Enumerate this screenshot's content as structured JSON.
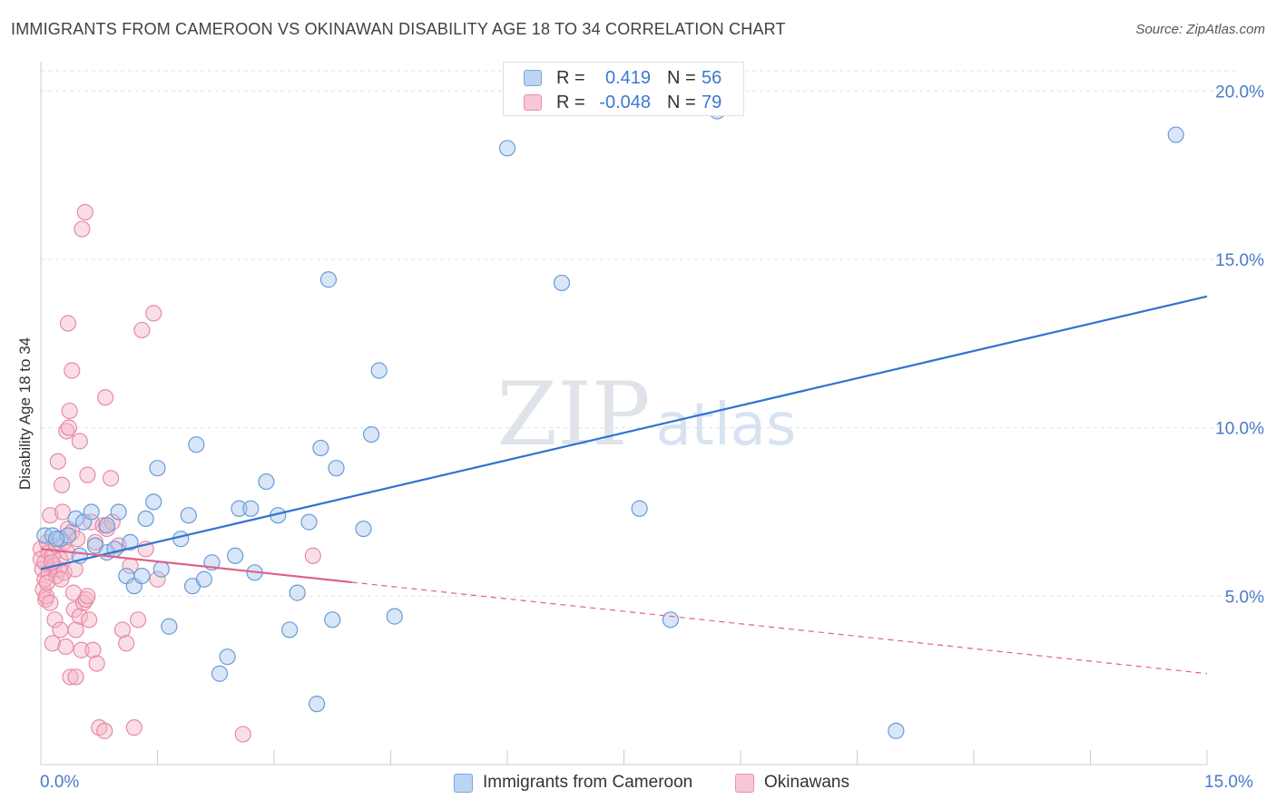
{
  "title": "IMMIGRANTS FROM CAMEROON VS OKINAWAN DISABILITY AGE 18 TO 34 CORRELATION CHART",
  "source": "Source: ZipAtlas.com",
  "watermark": {
    "zip": "ZIP",
    "atlas": "atlas"
  },
  "legend_top": {
    "r_label": "R =",
    "n_label": "N =",
    "series1": {
      "r": "0.419",
      "n": "56"
    },
    "series2": {
      "r": "-0.048",
      "n": "79"
    }
  },
  "x_tick_labels": {
    "left": "0.0%",
    "right": "15.0%"
  },
  "chart_data": {
    "type": "scatter",
    "title": "IMMIGRANTS FROM CAMEROON VS OKINAWAN DISABILITY AGE 18 TO 34 CORRELATION CHART",
    "xlabel": "",
    "ylabel": "Disability Age 18 to 34",
    "xlim": [
      0,
      15
    ],
    "ylim": [
      0,
      20.6
    ],
    "y_ticks": [
      5,
      10,
      15,
      20
    ],
    "y_tick_labels": [
      "5.0%",
      "10.0%",
      "15.0%",
      "20.0%"
    ],
    "x_tick_labels": [
      "0.0%",
      "15.0%"
    ],
    "grid": true,
    "colors": {
      "series1_fill": "#a9c7ee",
      "series1_stroke": "#6a9bd8",
      "series1_line": "#2f74d0",
      "series2_fill": "#f4b6c8",
      "series2_stroke": "#e88aa5",
      "series2_line": "#e0608c",
      "tick_label": "#4a7ac8",
      "grid": "#dcdfe6"
    },
    "series": [
      {
        "name": "Immigrants from Cameroon",
        "r": 0.419,
        "n": 56,
        "trend": {
          "x": [
            0.0,
            15.0
          ],
          "y": [
            5.8,
            13.9
          ],
          "dashed_from": null
        },
        "points": [
          [
            0.05,
            6.8
          ],
          [
            0.15,
            6.8
          ],
          [
            0.25,
            6.7
          ],
          [
            0.35,
            6.8
          ],
          [
            0.45,
            7.3
          ],
          [
            0.5,
            6.2
          ],
          [
            0.55,
            7.2
          ],
          [
            0.65,
            7.5
          ],
          [
            0.7,
            6.5
          ],
          [
            0.85,
            7.1
          ],
          [
            0.85,
            6.3
          ],
          [
            0.95,
            6.4
          ],
          [
            1.0,
            7.5
          ],
          [
            1.1,
            5.6
          ],
          [
            1.15,
            6.6
          ],
          [
            1.2,
            5.3
          ],
          [
            1.3,
            5.6
          ],
          [
            1.35,
            7.3
          ],
          [
            1.45,
            7.8
          ],
          [
            1.5,
            8.8
          ],
          [
            1.55,
            5.8
          ],
          [
            1.65,
            4.1
          ],
          [
            1.8,
            6.7
          ],
          [
            1.9,
            7.4
          ],
          [
            1.95,
            5.3
          ],
          [
            2.0,
            9.5
          ],
          [
            2.1,
            5.5
          ],
          [
            2.2,
            6.0
          ],
          [
            2.3,
            2.7
          ],
          [
            2.4,
            3.2
          ],
          [
            2.5,
            6.2
          ],
          [
            2.55,
            7.6
          ],
          [
            2.7,
            7.6
          ],
          [
            2.75,
            5.7
          ],
          [
            2.9,
            8.4
          ],
          [
            3.05,
            7.4
          ],
          [
            3.2,
            4.0
          ],
          [
            3.3,
            5.1
          ],
          [
            3.45,
            7.2
          ],
          [
            3.55,
            1.8
          ],
          [
            3.6,
            9.4
          ],
          [
            3.7,
            14.4
          ],
          [
            3.75,
            4.3
          ],
          [
            3.8,
            8.8
          ],
          [
            4.15,
            7.0
          ],
          [
            4.25,
            9.8
          ],
          [
            4.35,
            11.7
          ],
          [
            4.55,
            4.4
          ],
          [
            6.0,
            18.3
          ],
          [
            6.7,
            14.3
          ],
          [
            7.7,
            7.6
          ],
          [
            8.1,
            4.3
          ],
          [
            8.7,
            19.4
          ],
          [
            11.0,
            1.0
          ],
          [
            14.6,
            18.7
          ],
          [
            0.2,
            6.7
          ]
        ]
      },
      {
        "name": "Okinawans",
        "r": -0.048,
        "n": 79,
        "trend": {
          "x": [
            0.0,
            15.0
          ],
          "y": [
            6.4,
            2.7
          ],
          "dashed_from": 4.0
        },
        "points": [
          [
            0.0,
            6.4
          ],
          [
            0.0,
            6.1
          ],
          [
            0.02,
            5.8
          ],
          [
            0.03,
            5.2
          ],
          [
            0.05,
            6.0
          ],
          [
            0.05,
            5.5
          ],
          [
            0.06,
            4.9
          ],
          [
            0.07,
            5.0
          ],
          [
            0.08,
            6.6
          ],
          [
            0.1,
            6.3
          ],
          [
            0.1,
            5.7
          ],
          [
            0.12,
            7.4
          ],
          [
            0.12,
            4.8
          ],
          [
            0.15,
            3.6
          ],
          [
            0.15,
            6.2
          ],
          [
            0.17,
            5.9
          ],
          [
            0.18,
            4.3
          ],
          [
            0.2,
            5.6
          ],
          [
            0.2,
            6.5
          ],
          [
            0.22,
            9.0
          ],
          [
            0.23,
            5.8
          ],
          [
            0.25,
            4.0
          ],
          [
            0.25,
            6.1
          ],
          [
            0.27,
            8.3
          ],
          [
            0.28,
            7.5
          ],
          [
            0.3,
            5.7
          ],
          [
            0.3,
            6.6
          ],
          [
            0.32,
            3.5
          ],
          [
            0.33,
            9.9
          ],
          [
            0.35,
            7.0
          ],
          [
            0.35,
            13.1
          ],
          [
            0.36,
            10.0
          ],
          [
            0.37,
            10.5
          ],
          [
            0.38,
            2.6
          ],
          [
            0.4,
            11.7
          ],
          [
            0.4,
            6.9
          ],
          [
            0.42,
            5.1
          ],
          [
            0.43,
            4.6
          ],
          [
            0.45,
            2.6
          ],
          [
            0.45,
            4.0
          ],
          [
            0.47,
            6.7
          ],
          [
            0.5,
            4.4
          ],
          [
            0.5,
            9.6
          ],
          [
            0.52,
            3.4
          ],
          [
            0.53,
            15.9
          ],
          [
            0.55,
            4.8
          ],
          [
            0.57,
            16.4
          ],
          [
            0.58,
            4.9
          ],
          [
            0.6,
            5.0
          ],
          [
            0.6,
            8.6
          ],
          [
            0.62,
            4.3
          ],
          [
            0.65,
            7.2
          ],
          [
            0.67,
            3.4
          ],
          [
            0.7,
            6.6
          ],
          [
            0.72,
            3.0
          ],
          [
            0.75,
            1.1
          ],
          [
            0.8,
            7.1
          ],
          [
            0.82,
            1.0
          ],
          [
            0.83,
            10.9
          ],
          [
            0.85,
            7.0
          ],
          [
            0.9,
            8.5
          ],
          [
            0.92,
            7.2
          ],
          [
            1.0,
            6.5
          ],
          [
            1.05,
            4.0
          ],
          [
            1.1,
            3.6
          ],
          [
            1.15,
            5.9
          ],
          [
            1.2,
            1.1
          ],
          [
            1.25,
            4.3
          ],
          [
            1.3,
            12.9
          ],
          [
            1.35,
            6.4
          ],
          [
            1.45,
            13.4
          ],
          [
            1.5,
            5.5
          ],
          [
            2.6,
            0.9
          ],
          [
            3.5,
            6.2
          ],
          [
            0.08,
            5.4
          ],
          [
            0.14,
            6.0
          ],
          [
            0.26,
            5.5
          ],
          [
            0.34,
            6.3
          ],
          [
            0.44,
            5.8
          ]
        ]
      }
    ]
  }
}
